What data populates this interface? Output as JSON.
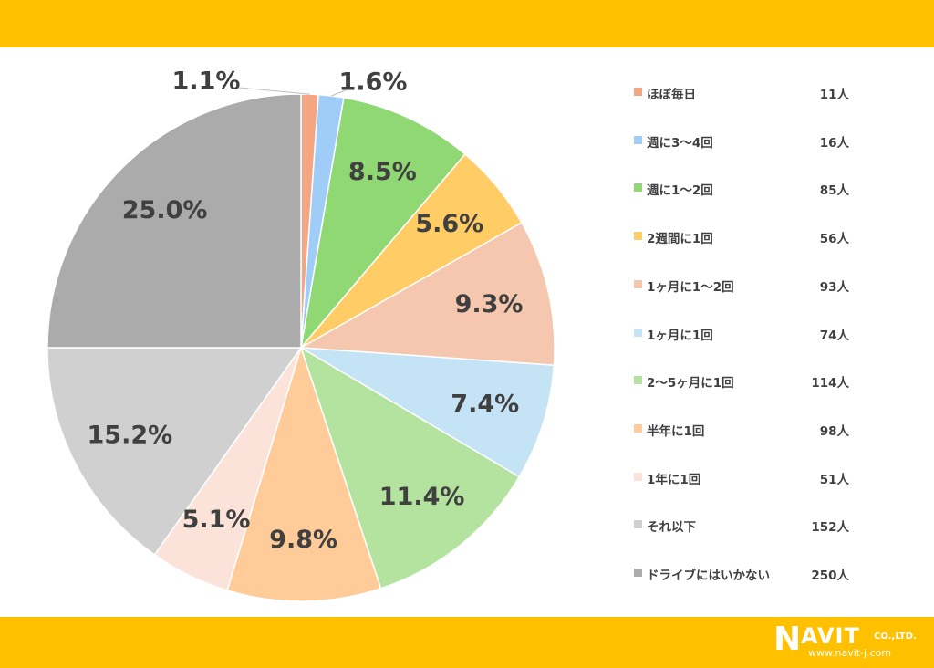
{
  "chart_data": {
    "type": "pie",
    "start": "12 o'clock, clockwise",
    "legend_position": "right",
    "slices": [
      {
        "label": "ほぼ毎日",
        "count_label": "11人",
        "value": 1.1,
        "value_label": "1.1%",
        "color": "#f4a582"
      },
      {
        "label": "週に3～4回",
        "count_label": "16人",
        "value": 1.6,
        "value_label": "1.6%",
        "color": "#9fcdf7"
      },
      {
        "label": "週に1～2回",
        "count_label": "85人",
        "value": 8.5,
        "value_label": "8.5%",
        "color": "#8fd873"
      },
      {
        "label": "2週間に1回",
        "count_label": "56人",
        "value": 5.6,
        "value_label": "5.6%",
        "color": "#ffcc66"
      },
      {
        "label": "1ヶ月に1～2回",
        "count_label": "93人",
        "value": 9.3,
        "value_label": "9.3%",
        "color": "#f4c7ae"
      },
      {
        "label": "1ヶ月に1回",
        "count_label": "74人",
        "value": 7.4,
        "value_label": "7.4%",
        "color": "#c4e3f5"
      },
      {
        "label": "2～5ヶ月に1回",
        "count_label": "114人",
        "value": 11.4,
        "value_label": "11.4%",
        "color": "#b4e3a0"
      },
      {
        "label": "半年に1回",
        "count_label": "98人",
        "value": 9.8,
        "value_label": "9.8%",
        "color": "#ffcc99"
      },
      {
        "label": "1年に1回",
        "count_label": "51人",
        "value": 5.1,
        "value_label": "5.1%",
        "color": "#fbe3da"
      },
      {
        "label": "それ以下",
        "count_label": "152人",
        "value": 15.2,
        "value_label": "15.2%",
        "color": "#d0d0d0"
      },
      {
        "label": "ドライブにはいかない",
        "count_label": "250人",
        "value": 25.0,
        "value_label": "25.0%",
        "color": "#ababab"
      }
    ]
  },
  "logo": {
    "brand_initial": "N",
    "brand_rest": "AVIT",
    "company_suffix": "CO.,LTD.",
    "url": "www.navit-j.com"
  },
  "theme": {
    "band_color": "#ffc000",
    "label_color": "#404040"
  }
}
